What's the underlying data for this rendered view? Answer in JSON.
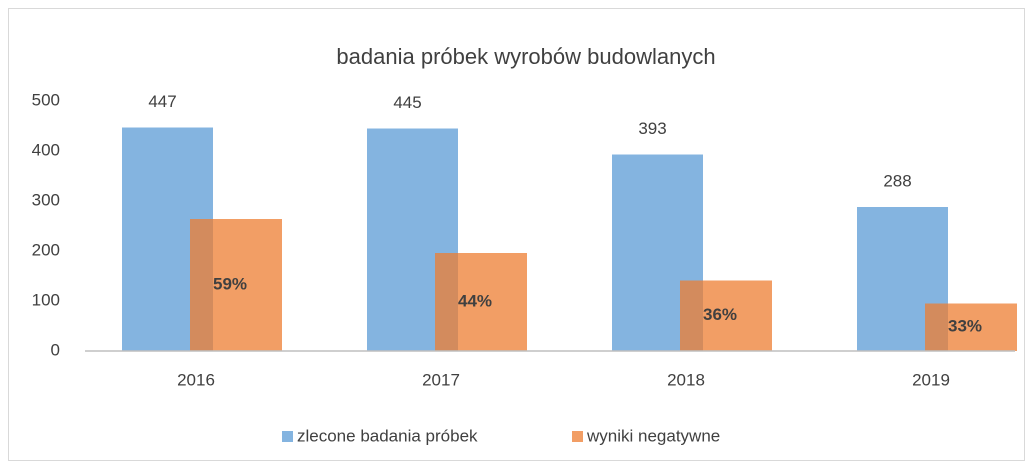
{
  "chart_data": {
    "type": "bar",
    "title": "badania próbek wyrobów budowlanych",
    "categories": [
      "2016",
      "2017",
      "2018",
      "2019"
    ],
    "series": [
      {
        "name": "zlecone badania próbek",
        "color": "#5b9bd5",
        "values": [
          447,
          445,
          393,
          288
        ]
      },
      {
        "name": "wyniki negatywne",
        "color": "#ed7d31",
        "values": [
          264,
          196,
          141,
          95
        ],
        "annotations": [
          "59%",
          "44%",
          "36%",
          "33%"
        ]
      }
    ],
    "ylim": [
      0,
      500
    ],
    "yticks": [
      0,
      100,
      200,
      300,
      400,
      500
    ],
    "grid": false,
    "legend": "bottom"
  }
}
